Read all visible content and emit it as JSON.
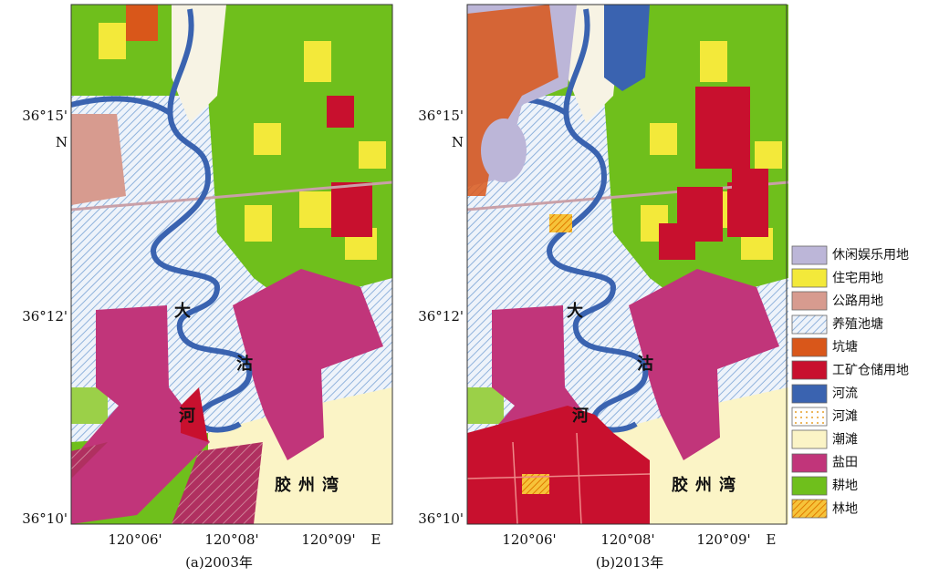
{
  "panels": [
    {
      "caption": "(a)2003年",
      "y_labels": [
        "36°15'",
        "N",
        "36°12'",
        "36°10'"
      ],
      "x_labels": [
        "120°06'",
        "120°08'",
        "120°09'",
        "E"
      ],
      "place_labels": [
        "大",
        "沽",
        "河",
        "胶州湾"
      ]
    },
    {
      "caption": "(b)2013年",
      "y_labels": [
        "36°15'",
        "N",
        "36°12'",
        "36°10'"
      ],
      "x_labels": [
        "120°06'",
        "120°08'",
        "120°09'",
        "E"
      ],
      "place_labels": [
        "大",
        "沽",
        "河",
        "胶州湾"
      ]
    }
  ],
  "legend": [
    "休闲娱乐用地",
    "住宅用地",
    "公路用地",
    "养殖池塘",
    "坑塘",
    "工矿仓储用地",
    "河流",
    "河滩",
    "潮滩",
    "盐田",
    "耕地",
    "林地"
  ]
}
